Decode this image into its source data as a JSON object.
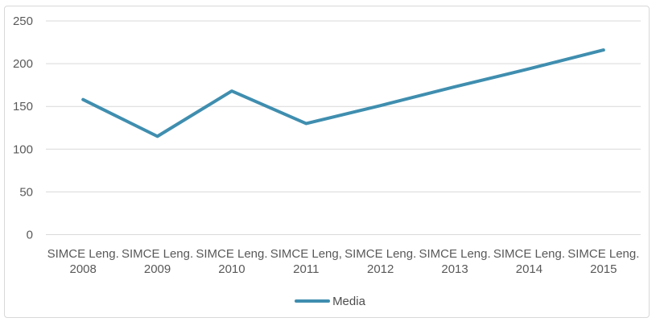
{
  "window": {
    "background": "#ffffff",
    "border_color": "#d8d8d8"
  },
  "chart_data": {
    "type": "line",
    "title": "",
    "xlabel": "",
    "ylabel": "",
    "categories": [
      "SIMCE Leng. 2008",
      "SIMCE Leng. 2009",
      "SIMCE Leng. 2010",
      "SIMCE Leng, 2011",
      "SIMCE Leng. 2012",
      "SIMCE Leng. 2013",
      "SIMCE Leng. 2014",
      "SIMCE Leng. 2015"
    ],
    "series": [
      {
        "name": "Media",
        "color": "#3f8eaf",
        "values": [
          158,
          115,
          168,
          130,
          151,
          173,
          194,
          216
        ]
      }
    ],
    "ylim": [
      0,
      250
    ],
    "yticks": [
      0,
      50,
      100,
      150,
      200,
      250
    ],
    "grid": true,
    "gridline_color": "#d9d9d9",
    "axis_text_color": "#595959",
    "legend_position": "bottom"
  }
}
